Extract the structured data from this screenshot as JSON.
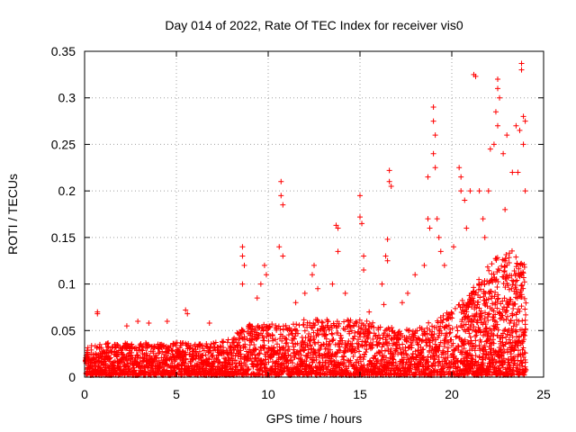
{
  "chart_data": {
    "type": "scatter",
    "title": "Day 014 of 2022, Rate Of TEC Index for receiver vis0",
    "xlabel": "GPS time / hours",
    "ylabel": "ROTI / TECUs",
    "xlim": [
      0,
      25
    ],
    "ylim": [
      0,
      0.35
    ],
    "xticks": [
      "0",
      "5",
      "10",
      "15",
      "20",
      "25"
    ],
    "yticks": [
      "0",
      "0.05",
      "0.1",
      "0.15",
      "0.2",
      "0.25",
      "0.3",
      "0.35"
    ],
    "grid": true,
    "marker": "plus",
    "color": "#ff0000",
    "baseline_band": {
      "x": [
        0,
        1,
        2,
        3,
        4,
        5,
        6,
        7,
        8,
        8.5,
        9,
        10,
        11,
        12,
        13,
        14,
        15,
        16,
        17,
        18,
        19,
        20,
        21,
        22,
        23,
        24
      ],
      "y_max": [
        0.03,
        0.035,
        0.035,
        0.035,
        0.035,
        0.035,
        0.035,
        0.035,
        0.04,
        0.05,
        0.055,
        0.055,
        0.055,
        0.06,
        0.06,
        0.06,
        0.06,
        0.055,
        0.05,
        0.05,
        0.06,
        0.07,
        0.09,
        0.12,
        0.14,
        0.12
      ]
    },
    "points": [
      {
        "x": 0.7,
        "y": 0.07
      },
      {
        "x": 0.7,
        "y": 0.068
      },
      {
        "x": 2.3,
        "y": 0.055
      },
      {
        "x": 2.9,
        "y": 0.06
      },
      {
        "x": 3.5,
        "y": 0.058
      },
      {
        "x": 4.5,
        "y": 0.06
      },
      {
        "x": 5.5,
        "y": 0.072
      },
      {
        "x": 5.6,
        "y": 0.068
      },
      {
        "x": 6.8,
        "y": 0.058
      },
      {
        "x": 8.6,
        "y": 0.14
      },
      {
        "x": 8.6,
        "y": 0.13
      },
      {
        "x": 8.7,
        "y": 0.12
      },
      {
        "x": 8.6,
        "y": 0.1
      },
      {
        "x": 9.4,
        "y": 0.085
      },
      {
        "x": 9.6,
        "y": 0.1
      },
      {
        "x": 9.8,
        "y": 0.12
      },
      {
        "x": 9.9,
        "y": 0.11
      },
      {
        "x": 10.7,
        "y": 0.21
      },
      {
        "x": 10.7,
        "y": 0.195
      },
      {
        "x": 10.8,
        "y": 0.185
      },
      {
        "x": 10.6,
        "y": 0.14
      },
      {
        "x": 10.8,
        "y": 0.13
      },
      {
        "x": 11.5,
        "y": 0.08
      },
      {
        "x": 12.0,
        "y": 0.09
      },
      {
        "x": 12.4,
        "y": 0.11
      },
      {
        "x": 12.5,
        "y": 0.12
      },
      {
        "x": 12.7,
        "y": 0.095
      },
      {
        "x": 13.5,
        "y": 0.1
      },
      {
        "x": 13.7,
        "y": 0.163
      },
      {
        "x": 13.8,
        "y": 0.16
      },
      {
        "x": 13.8,
        "y": 0.135
      },
      {
        "x": 14.2,
        "y": 0.09
      },
      {
        "x": 15.0,
        "y": 0.195
      },
      {
        "x": 15.0,
        "y": 0.172
      },
      {
        "x": 15.1,
        "y": 0.165
      },
      {
        "x": 15.2,
        "y": 0.13
      },
      {
        "x": 15.2,
        "y": 0.115
      },
      {
        "x": 15.5,
        "y": 0.07
      },
      {
        "x": 16.2,
        "y": 0.1
      },
      {
        "x": 16.4,
        "y": 0.13
      },
      {
        "x": 16.5,
        "y": 0.125
      },
      {
        "x": 16.5,
        "y": 0.148
      },
      {
        "x": 16.6,
        "y": 0.222
      },
      {
        "x": 16.6,
        "y": 0.21
      },
      {
        "x": 16.7,
        "y": 0.205
      },
      {
        "x": 16.3,
        "y": 0.078
      },
      {
        "x": 17.3,
        "y": 0.08
      },
      {
        "x": 17.6,
        "y": 0.09
      },
      {
        "x": 18.0,
        "y": 0.11
      },
      {
        "x": 18.5,
        "y": 0.12
      },
      {
        "x": 18.7,
        "y": 0.17
      },
      {
        "x": 18.7,
        "y": 0.215
      },
      {
        "x": 18.8,
        "y": 0.16
      },
      {
        "x": 19.0,
        "y": 0.29
      },
      {
        "x": 19.0,
        "y": 0.275
      },
      {
        "x": 19.1,
        "y": 0.26
      },
      {
        "x": 19.0,
        "y": 0.24
      },
      {
        "x": 19.1,
        "y": 0.225
      },
      {
        "x": 19.2,
        "y": 0.17
      },
      {
        "x": 19.3,
        "y": 0.15
      },
      {
        "x": 19.4,
        "y": 0.135
      },
      {
        "x": 19.6,
        "y": 0.12
      },
      {
        "x": 20.1,
        "y": 0.14
      },
      {
        "x": 20.4,
        "y": 0.225
      },
      {
        "x": 20.5,
        "y": 0.215
      },
      {
        "x": 20.5,
        "y": 0.2
      },
      {
        "x": 20.7,
        "y": 0.19
      },
      {
        "x": 21.0,
        "y": 0.2
      },
      {
        "x": 21.2,
        "y": 0.325
      },
      {
        "x": 21.3,
        "y": 0.323
      },
      {
        "x": 21.5,
        "y": 0.2
      },
      {
        "x": 21.7,
        "y": 0.17
      },
      {
        "x": 22.0,
        "y": 0.2
      },
      {
        "x": 22.1,
        "y": 0.245
      },
      {
        "x": 22.3,
        "y": 0.25
      },
      {
        "x": 22.4,
        "y": 0.285
      },
      {
        "x": 22.5,
        "y": 0.32
      },
      {
        "x": 22.5,
        "y": 0.31
      },
      {
        "x": 22.6,
        "y": 0.3
      },
      {
        "x": 22.5,
        "y": 0.27
      },
      {
        "x": 22.8,
        "y": 0.24
      },
      {
        "x": 23.0,
        "y": 0.26
      },
      {
        "x": 23.3,
        "y": 0.22
      },
      {
        "x": 23.5,
        "y": 0.27
      },
      {
        "x": 23.7,
        "y": 0.265
      },
      {
        "x": 23.8,
        "y": 0.337
      },
      {
        "x": 23.8,
        "y": 0.33
      },
      {
        "x": 23.9,
        "y": 0.28
      },
      {
        "x": 24.0,
        "y": 0.275
      },
      {
        "x": 23.9,
        "y": 0.25
      },
      {
        "x": 24.0,
        "y": 0.2
      },
      {
        "x": 23.6,
        "y": 0.22
      },
      {
        "x": 22.9,
        "y": 0.18
      },
      {
        "x": 21.8,
        "y": 0.15
      },
      {
        "x": 20.8,
        "y": 0.16
      },
      {
        "x": 23.9,
        "y": 0.005
      },
      {
        "x": 24.0,
        "y": 0.006
      },
      {
        "x": 23.5,
        "y": 0.01
      }
    ]
  }
}
